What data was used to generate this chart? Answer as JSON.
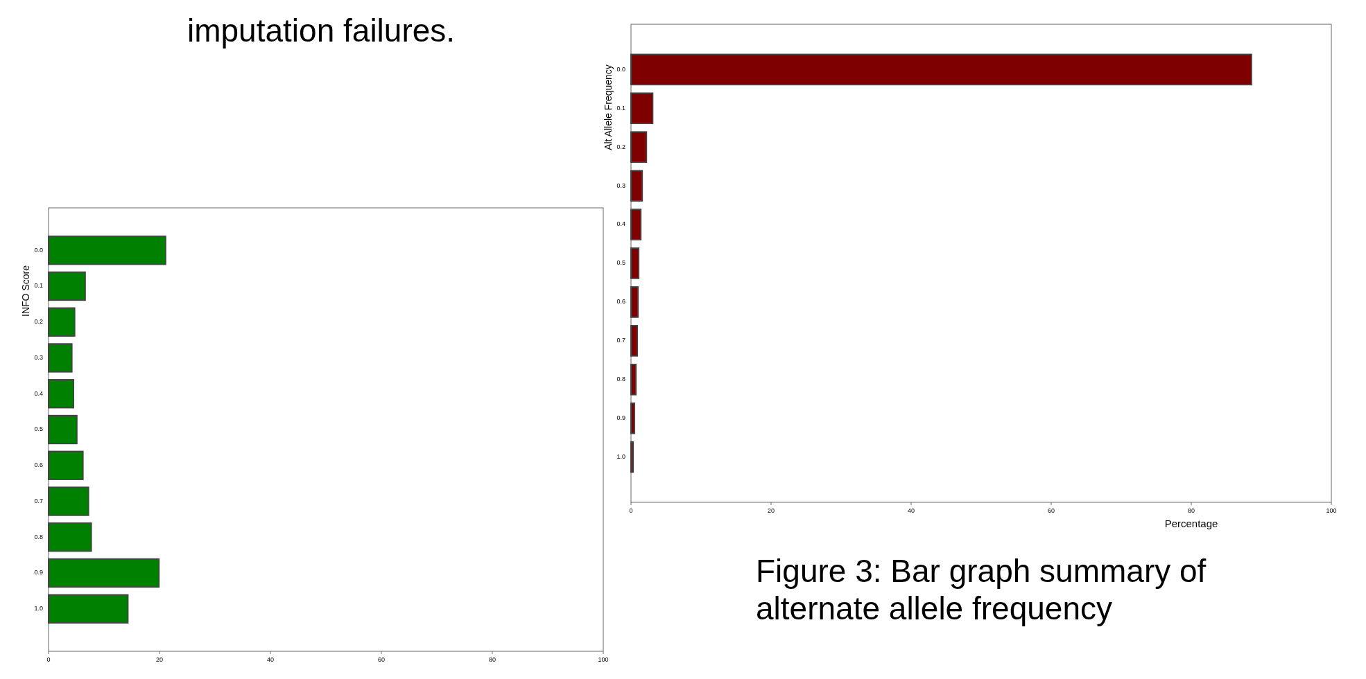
{
  "chart_data": [
    {
      "type": "bar",
      "orientation": "horizontal",
      "ylabel": "INFO Score",
      "annotations": [
        "imputation failures."
      ],
      "categories": [
        "0.0",
        "0.1",
        "0.2",
        "0.3",
        "0.4",
        "0.5",
        "0.6",
        "0.7",
        "0.8",
        "0.9",
        "1.0"
      ],
      "values": [
        21.1,
        6.6,
        4.7,
        4.2,
        4.5,
        5.1,
        6.2,
        7.2,
        7.7,
        19.9,
        14.3
      ],
      "color": "#008000",
      "xlim": [
        0,
        100
      ],
      "xticks": [
        0,
        20,
        40,
        60,
        80,
        100
      ],
      "grid": false
    },
    {
      "type": "bar",
      "orientation": "horizontal",
      "ylabel": "Alt Allele Frequency",
      "xlabel": "Percentage",
      "annotations": [
        "Figure 3: Bar graph summary of alternate allele frequency"
      ],
      "categories": [
        "0.0",
        "0.1",
        "0.2",
        "0.3",
        "0.4",
        "0.5",
        "0.6",
        "0.7",
        "0.8",
        "0.9",
        "1.0"
      ],
      "values": [
        88.6,
        3.1,
        2.2,
        1.6,
        1.4,
        1.1,
        1.0,
        0.9,
        0.7,
        0.5,
        0.3
      ],
      "color": "#7f0000",
      "xlim": [
        0,
        100
      ],
      "xticks": [
        0,
        20,
        40,
        60,
        80,
        100
      ],
      "grid": false
    }
  ]
}
